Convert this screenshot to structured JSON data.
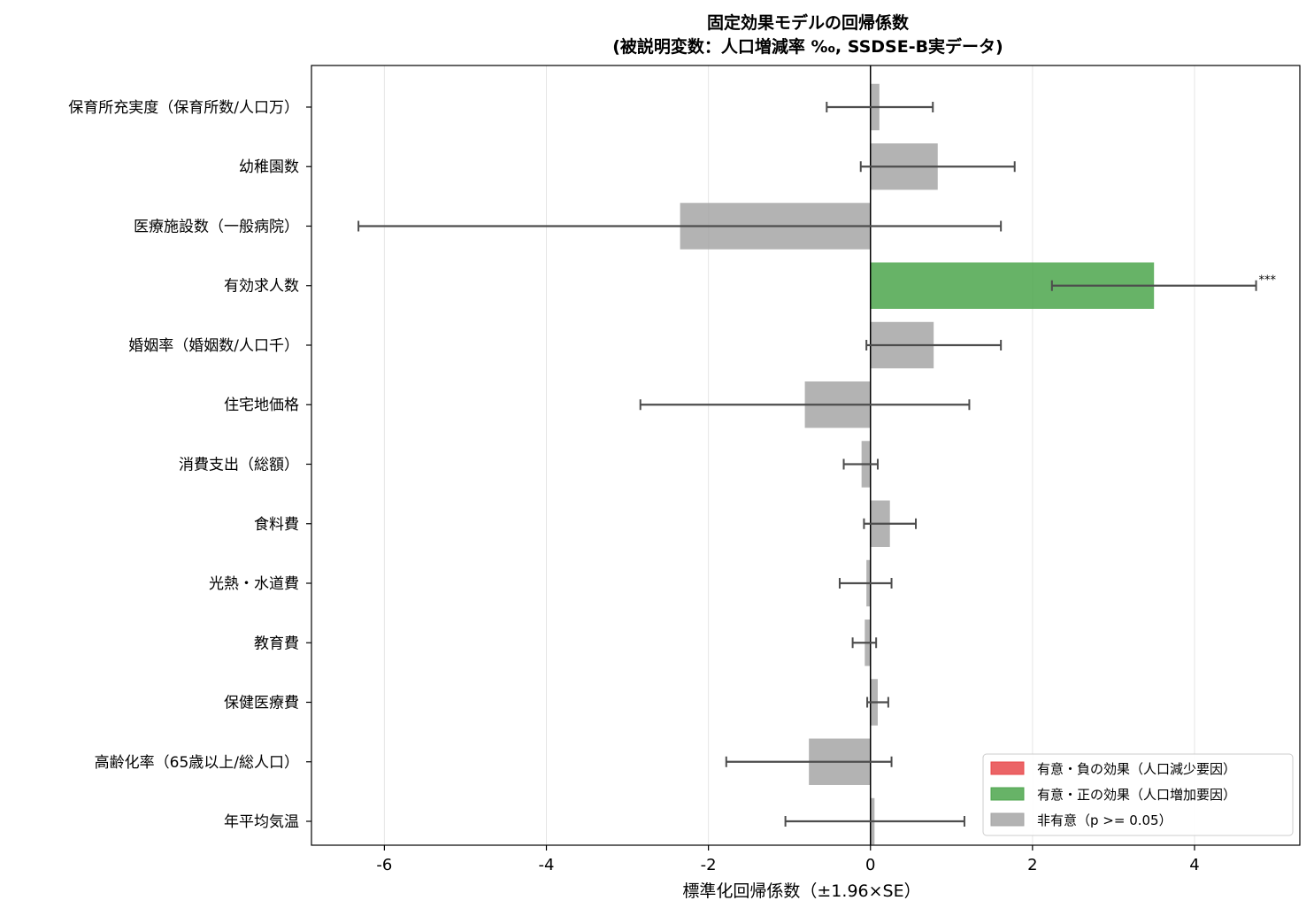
{
  "chart_data": {
    "type": "bar",
    "orientation": "horizontal",
    "title": "固定効果モデルの回帰係数",
    "subtitle": "(被説明変数：人口増減率 ‰, SSDSE-B実データ)",
    "xlabel": "標準化回帰係数（±1.96×SE）",
    "ylabel": "",
    "xlim": [
      -6.9,
      5.3
    ],
    "xticks": [
      -6,
      -4,
      -2,
      0,
      2,
      4
    ],
    "xtick_labels": [
      "-6",
      "-4",
      "-2",
      "0",
      "2",
      "4"
    ],
    "grid": "vertical",
    "legend_position": "bottom-right",
    "legend": [
      {
        "label": "有意・負の効果（人口減少要因）",
        "color": "#e8494b"
      },
      {
        "label": "有意・正の効果（人口増加要因）",
        "color": "#4ca64c"
      },
      {
        "label": "非有意（p >= 0.05）",
        "color": "#a6a6a6"
      }
    ],
    "colors": {
      "negative": "#e8494b",
      "positive": "#4ca64c",
      "nonsig": "#a6a6a6",
      "errorbar": "#4d4d4d"
    },
    "categories": [
      "保育所充実度（保育所数/人口万）",
      "幼稚園数",
      "医療施設数（一般病院）",
      "有効求人数",
      "婚姻率（婚姻数/人口千）",
      "住宅地価格",
      "消費支出（総額）",
      "食料費",
      "光熱・水道費",
      "教育費",
      "保健医療費",
      "高齢化率（65歳以上/総人口）",
      "年平均気温"
    ],
    "values": [
      0.11,
      0.83,
      -2.35,
      3.5,
      0.78,
      -0.81,
      -0.11,
      0.24,
      -0.05,
      -0.07,
      0.09,
      -0.76,
      0.05
    ],
    "ci_lower": [
      -0.54,
      -0.12,
      -6.32,
      2.24,
      -0.05,
      -2.84,
      -0.33,
      -0.08,
      -0.38,
      -0.22,
      -0.04,
      -1.78,
      -1.05
    ],
    "ci_upper": [
      0.77,
      1.78,
      1.61,
      4.76,
      1.61,
      1.22,
      0.09,
      0.56,
      0.26,
      0.07,
      0.22,
      0.26,
      1.16
    ],
    "significance": [
      "nonsig",
      "nonsig",
      "nonsig",
      "positive",
      "nonsig",
      "nonsig",
      "nonsig",
      "nonsig",
      "nonsig",
      "nonsig",
      "nonsig",
      "nonsig",
      "nonsig"
    ],
    "annotations": [
      "",
      "",
      "",
      "***",
      "",
      "",
      "",
      "",
      "",
      "",
      "",
      "",
      ""
    ]
  }
}
